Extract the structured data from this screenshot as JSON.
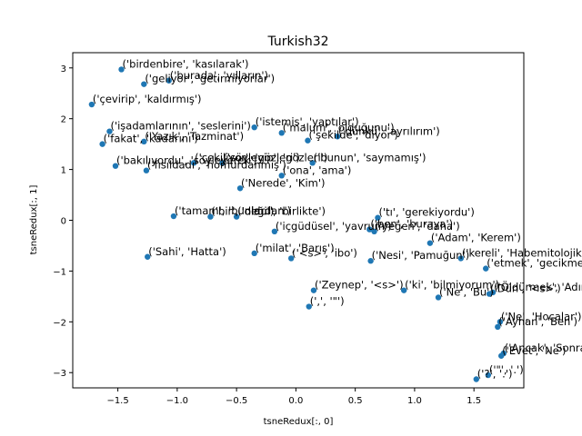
{
  "chart_data": {
    "type": "scatter",
    "title": "Turkish32",
    "xlabel": "tsneRedux[:, 0]",
    "ylabel": "tsneRedux[:, 1]",
    "xlim": [
      -1.88,
      1.92
    ],
    "ylim": [
      -3.3,
      3.3
    ],
    "xticks": [
      -1.5,
      -1.0,
      -0.5,
      0.0,
      0.5,
      1.0,
      1.5
    ],
    "xtick_labels": [
      "−1.5",
      "−1.0",
      "−0.5",
      "0.0",
      "0.5",
      "1.0",
      "1.5"
    ],
    "yticks": [
      -3,
      -2,
      -1,
      0,
      1,
      2,
      3
    ],
    "ytick_labels": [
      "−3",
      "−2",
      "−1",
      "0",
      "1",
      "2",
      "3"
    ],
    "marker_color": "#1f77b4",
    "grid": false,
    "points": [
      {
        "x": -1.47,
        "y": 2.97,
        "label": "('birdenbire', 'kasılarak')"
      },
      {
        "x": -1.28,
        "y": 2.68,
        "label": "('geliyor', 'getirmiyorlar')"
      },
      {
        "x": -1.07,
        "y": 2.75,
        "label": "('burada', 'yılların')"
      },
      {
        "x": -1.72,
        "y": 2.28,
        "label": "('çevirip', 'kaldırmış')"
      },
      {
        "x": -1.57,
        "y": 1.75,
        "label": "('işadamlarının', 'seslerini')"
      },
      {
        "x": -0.35,
        "y": 1.83,
        "label": "('istemis', 'yaptılar')"
      },
      {
        "x": -0.12,
        "y": 1.72,
        "label": "('malum', 'olduğunu')"
      },
      {
        "x": 0.1,
        "y": 1.57,
        "label": "('şekilde', 'diyor')"
      },
      {
        "x": 0.35,
        "y": 1.65,
        "label": "('dünkü', 'ayrılırım')"
      },
      {
        "x": -1.63,
        "y": 1.5,
        "label": "('fakat', 'kadarını')"
      },
      {
        "x": -1.28,
        "y": 1.55,
        "label": "('Yazık', 'Tazminat')"
      },
      {
        "x": -1.52,
        "y": 1.07,
        "label": "('bakılıyordu', 'söyleyerek')"
      },
      {
        "x": -1.26,
        "y": 0.98,
        "label": "('fısıldadı', 'homurdanmış')"
      },
      {
        "x": -0.86,
        "y": 1.13,
        "label": "('çekiliyor', 'gözleri')"
      },
      {
        "x": -0.62,
        "y": 1.13,
        "label": "('söyleyip', 'gözleri')"
      },
      {
        "x": 0.14,
        "y": 1.13,
        "label": "('bunun', 'saymamış')"
      },
      {
        "x": -0.12,
        "y": 0.88,
        "label": "('ona', 'ama')"
      },
      {
        "x": -0.47,
        "y": 0.63,
        "label": "('Nerede', 'Kim')"
      },
      {
        "x": -1.03,
        "y": 0.08,
        "label": "('tamam', 'bunlardan')"
      },
      {
        "x": -0.72,
        "y": 0.07,
        "label": "('bir', 'oldu')"
      },
      {
        "x": -0.5,
        "y": 0.07,
        "label": "('değil', 'birlikte')"
      },
      {
        "x": 0.69,
        "y": 0.05,
        "label": "('tı', 'gerekiyordu')"
      },
      {
        "x": 0.62,
        "y": -0.18,
        "label": "('ben', 'buraya')"
      },
      {
        "x": 0.66,
        "y": -0.22,
        "label": "('yeğen', 'daha')"
      },
      {
        "x": -0.18,
        "y": -0.22,
        "label": "('içgüdüsel', 'yavrum')"
      },
      {
        "x": 1.13,
        "y": -0.45,
        "label": "('Adam', 'Kerem')"
      },
      {
        "x": -1.25,
        "y": -0.72,
        "label": "('Sahi', 'Hatta')"
      },
      {
        "x": -0.35,
        "y": -0.65,
        "label": "('milat', 'Barış')"
      },
      {
        "x": -0.04,
        "y": -0.75,
        "label": "('<s>', 'ibo')"
      },
      {
        "x": 0.63,
        "y": -0.8,
        "label": "('Nesi', 'Pamuğun')"
      },
      {
        "x": 1.39,
        "y": -0.75,
        "label": "('kereli', 'Habemitolojik')"
      },
      {
        "x": 1.6,
        "y": -0.95,
        "label": "('etmek', 'gecikmeli')"
      },
      {
        "x": 0.15,
        "y": -1.38,
        "label": "('Zeynep', '<s>')"
      },
      {
        "x": 0.91,
        "y": -1.38,
        "label": "('ki', 'bilmiyorum')"
      },
      {
        "x": 1.2,
        "y": -1.52,
        "label": "('Ne', 'Bu')"
      },
      {
        "x": 1.63,
        "y": -1.45,
        "label": "('Dün', '<s>')"
      },
      {
        "x": 1.66,
        "y": -1.42,
        "label": "('Öldürmek', 'Adım')"
      },
      {
        "x": 0.11,
        "y": -1.7,
        "label": "(',', '\"')"
      },
      {
        "x": 1.72,
        "y": -2.0,
        "label": "('Ne', 'Hocalar')"
      },
      {
        "x": 1.7,
        "y": -2.1,
        "label": "('Ayhan', 'Ben')"
      },
      {
        "x": 1.75,
        "y": -2.62,
        "label": "('Ancak', 'Sonra')"
      },
      {
        "x": 1.73,
        "y": -2.67,
        "label": "('Evet', 'Ne')"
      },
      {
        "x": 1.52,
        "y": -3.13,
        "label": "('?', '.')"
      },
      {
        "x": 1.62,
        "y": -3.05,
        "label": "('\"', '.')"
      }
    ]
  }
}
